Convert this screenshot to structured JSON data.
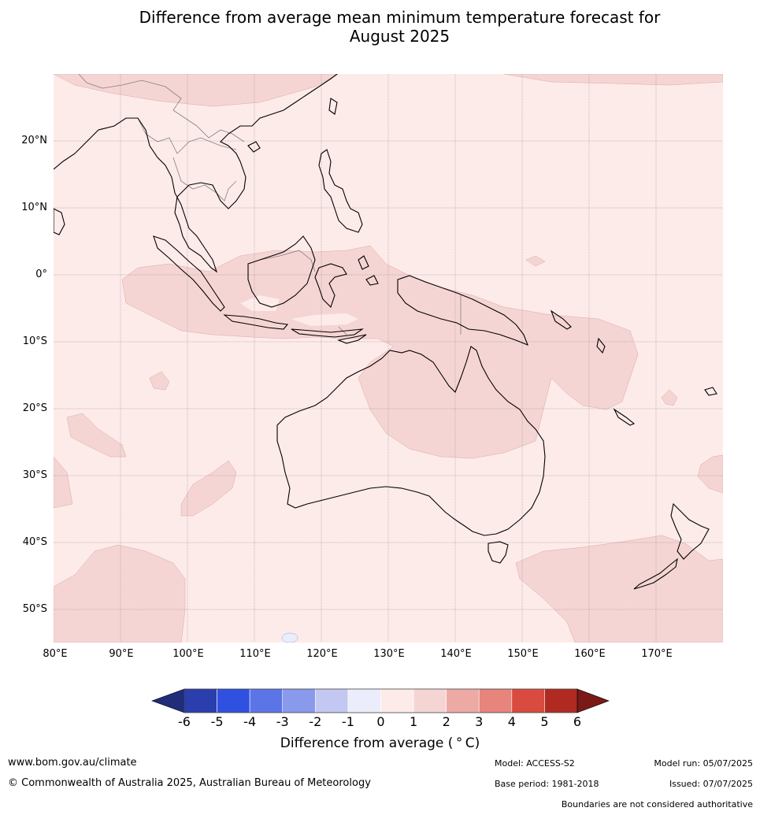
{
  "title": {
    "line1": "Difference from average mean minimum temperature forecast for",
    "line2": "August 2025"
  },
  "map": {
    "lon_range": [
      80,
      180
    ],
    "lat_range": [
      -55,
      30
    ],
    "lat_labels": [
      "20°N",
      "10°N",
      "0°",
      "10°S",
      "20°S",
      "30°S",
      "40°S",
      "50°S"
    ],
    "lon_labels": [
      "80°E",
      "90°E",
      "100°E",
      "110°E",
      "120°E",
      "130°E",
      "140°E",
      "150°E",
      "160°E",
      "170°E"
    ],
    "background_category": "0 to 1",
    "colors": {
      "cat_0_1": "#fdebea",
      "cat_1_2": "#f5d5d3",
      "cat_m1_0": "#ebedfb",
      "coast": "#000000",
      "border": "#808080",
      "grid": "#888888"
    }
  },
  "colorbar": {
    "ticks": [
      "-6",
      "-5",
      "-4",
      "-3",
      "-2",
      "-1",
      "0",
      "1",
      "2",
      "3",
      "4",
      "5",
      "6"
    ],
    "colors": [
      "#1f2d7a",
      "#2a3eae",
      "#3050e0",
      "#5c75e6",
      "#8999ec",
      "#c3c8f2",
      "#ebedfb",
      "#fdebea",
      "#f5d5d3",
      "#edaaa4",
      "#e7847c",
      "#d94a3f",
      "#b02a22",
      "#7a1a16"
    ],
    "label": "Difference from average ( ° C)"
  },
  "footer": {
    "website": "www.bom.gov.au/climate",
    "copyright": "© Commonwealth of Australia 2025, Australian Bureau of Meteorology",
    "model": "Model: ACCESS-S2",
    "base_period": "Base period: 1981-2018",
    "model_run": "Model run: 05/07/2025",
    "issued": "Issued: 07/07/2025",
    "disclaimer": "Boundaries are not considered authoritative"
  }
}
